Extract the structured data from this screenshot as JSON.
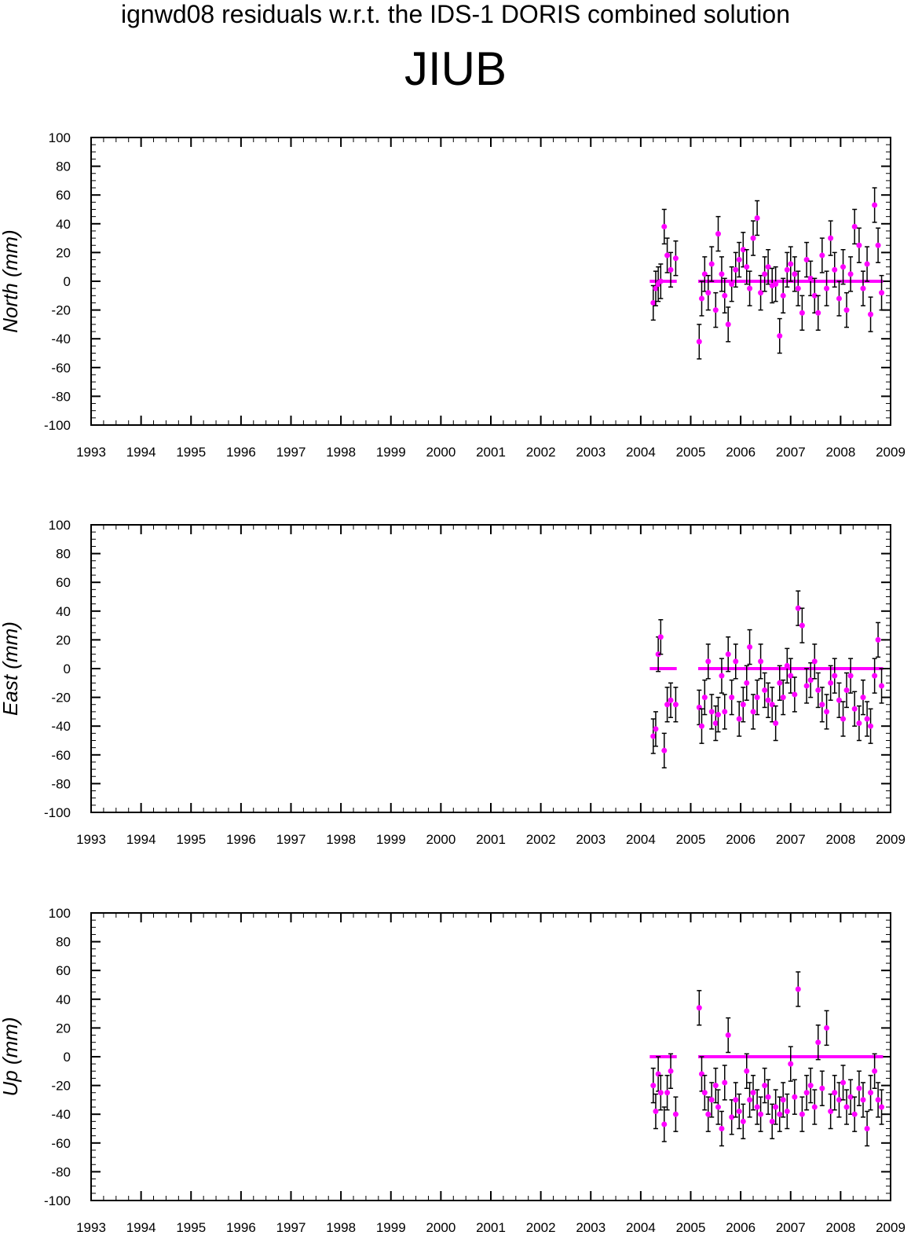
{
  "header": {
    "title": "ignwd08 residuals w.r.t. the IDS-1 DORIS combined solution",
    "station": "JIUB"
  },
  "colors": {
    "points": "#ff00ff",
    "errorbars": "#000000",
    "axes": "#000000",
    "background": "#ffffff"
  },
  "chart_data": [
    {
      "type": "scatter",
      "title": "",
      "xlabel": "",
      "ylabel": "North (mm)",
      "xlim": [
        1993,
        2009
      ],
      "ylim": [
        -100,
        100
      ],
      "x_ticks": [
        1993,
        1994,
        1995,
        1996,
        1997,
        1998,
        1999,
        2000,
        2001,
        2002,
        2003,
        2004,
        2005,
        2006,
        2007,
        2008,
        2009
      ],
      "y_ticks": [
        100,
        80,
        60,
        40,
        20,
        0,
        -20,
        -40,
        -60,
        -80,
        -100
      ],
      "grid": false,
      "error_bar_mm": 12,
      "series": [
        {
          "x": [
            2004.25,
            2004.3,
            2004.35,
            2004.4,
            2004.47,
            2004.53,
            2004.6,
            2004.7,
            2005.17,
            2005.22,
            2005.28,
            2005.35,
            2005.42,
            2005.5,
            2005.55,
            2005.62,
            2005.68,
            2005.75,
            2005.82,
            2005.9,
            2005.97,
            2006.05,
            2006.12,
            2006.18,
            2006.25,
            2006.33,
            2006.4,
            2006.48,
            2006.55,
            2006.63,
            2006.7,
            2006.78,
            2006.85,
            2006.93,
            2007.0,
            2007.08,
            2007.15,
            2007.23,
            2007.32,
            2007.4,
            2007.48,
            2007.55,
            2007.63,
            2007.72,
            2007.8,
            2007.88,
            2007.97,
            2008.05,
            2008.12,
            2008.2,
            2008.28,
            2008.37,
            2008.45,
            2008.53,
            2008.6,
            2008.68,
            2008.75,
            2008.82
          ],
          "y": [
            -15,
            -5,
            -2,
            0,
            38,
            18,
            8,
            16,
            -42,
            -12,
            5,
            -8,
            12,
            -20,
            33,
            5,
            -10,
            -30,
            -2,
            8,
            15,
            22,
            10,
            -5,
            30,
            44,
            -8,
            5,
            10,
            -3,
            -2,
            -38,
            -10,
            8,
            12,
            5,
            -5,
            -22,
            15,
            2,
            -10,
            -22,
            18,
            -5,
            30,
            8,
            -12,
            10,
            -20,
            5,
            38,
            25,
            -5,
            12,
            -23,
            53,
            25,
            -8
          ]
        }
      ],
      "mean_segments": [
        {
          "x": [
            2004.18,
            2004.72
          ],
          "y": 0
        },
        {
          "x": [
            2005.15,
            2008.85
          ],
          "y": 0
        }
      ]
    },
    {
      "type": "scatter",
      "title": "",
      "xlabel": "",
      "ylabel": "East (mm)",
      "xlim": [
        1993,
        2009
      ],
      "ylim": [
        -100,
        100
      ],
      "x_ticks": [
        1993,
        1994,
        1995,
        1996,
        1997,
        1998,
        1999,
        2000,
        2001,
        2002,
        2003,
        2004,
        2005,
        2006,
        2007,
        2008,
        2009
      ],
      "y_ticks": [
        100,
        80,
        60,
        40,
        20,
        0,
        -20,
        -40,
        -60,
        -80,
        -100
      ],
      "grid": false,
      "error_bar_mm": 12,
      "series": [
        {
          "x": [
            2004.25,
            2004.3,
            2004.35,
            2004.4,
            2004.47,
            2004.53,
            2004.6,
            2004.7,
            2005.17,
            2005.22,
            2005.28,
            2005.35,
            2005.42,
            2005.5,
            2005.55,
            2005.62,
            2005.68,
            2005.75,
            2005.82,
            2005.9,
            2005.97,
            2006.05,
            2006.12,
            2006.18,
            2006.25,
            2006.33,
            2006.4,
            2006.48,
            2006.55,
            2006.63,
            2006.7,
            2006.78,
            2006.85,
            2006.93,
            2007.0,
            2007.08,
            2007.15,
            2007.23,
            2007.32,
            2007.4,
            2007.48,
            2007.55,
            2007.63,
            2007.72,
            2007.8,
            2007.88,
            2007.97,
            2008.05,
            2008.12,
            2008.2,
            2008.28,
            2008.37,
            2008.45,
            2008.53,
            2008.6,
            2008.68,
            2008.75,
            2008.82
          ],
          "y": [
            -47,
            -42,
            10,
            22,
            -57,
            -25,
            -22,
            -25,
            -27,
            -40,
            -20,
            5,
            -30,
            -38,
            -32,
            -5,
            -30,
            10,
            -20,
            5,
            -35,
            -25,
            -10,
            15,
            -30,
            -20,
            5,
            -15,
            -22,
            -25,
            -38,
            -10,
            -20,
            2,
            -5,
            -18,
            42,
            30,
            -12,
            -8,
            5,
            -15,
            -25,
            -30,
            -10,
            -5,
            -22,
            -35,
            -15,
            -5,
            -28,
            -38,
            -20,
            -35,
            -40,
            -5,
            20,
            -12
          ]
        }
      ],
      "mean_segments": [
        {
          "x": [
            2004.18,
            2004.72
          ],
          "y": 0
        },
        {
          "x": [
            2005.15,
            2008.85
          ],
          "y": 0
        }
      ]
    },
    {
      "type": "scatter",
      "title": "",
      "xlabel": "",
      "ylabel": "Up (mm)",
      "xlim": [
        1993,
        2009
      ],
      "ylim": [
        -100,
        100
      ],
      "x_ticks": [
        1993,
        1994,
        1995,
        1996,
        1997,
        1998,
        1999,
        2000,
        2001,
        2002,
        2003,
        2004,
        2005,
        2006,
        2007,
        2008,
        2009
      ],
      "y_ticks": [
        100,
        80,
        60,
        40,
        20,
        0,
        -20,
        -40,
        -60,
        -80,
        -100
      ],
      "grid": false,
      "error_bar_mm": 12,
      "series": [
        {
          "x": [
            2004.25,
            2004.3,
            2004.35,
            2004.4,
            2004.47,
            2004.53,
            2004.6,
            2004.7,
            2005.17,
            2005.22,
            2005.28,
            2005.35,
            2005.42,
            2005.5,
            2005.55,
            2005.62,
            2005.68,
            2005.75,
            2005.82,
            2005.9,
            2005.97,
            2006.05,
            2006.12,
            2006.18,
            2006.25,
            2006.33,
            2006.4,
            2006.48,
            2006.55,
            2006.63,
            2006.7,
            2006.78,
            2006.85,
            2006.93,
            2007.0,
            2007.08,
            2007.15,
            2007.23,
            2007.32,
            2007.4,
            2007.48,
            2007.55,
            2007.63,
            2007.72,
            2007.8,
            2007.88,
            2007.97,
            2008.05,
            2008.12,
            2008.2,
            2008.28,
            2008.37,
            2008.45,
            2008.53,
            2008.6,
            2008.68,
            2008.75,
            2008.82
          ],
          "y": [
            -20,
            -38,
            -12,
            -25,
            -47,
            -25,
            -10,
            -40,
            34,
            -12,
            -25,
            -40,
            -30,
            -20,
            -35,
            -50,
            -18,
            15,
            -42,
            -30,
            -38,
            -45,
            -10,
            -30,
            -25,
            -35,
            -40,
            -20,
            -28,
            -45,
            -35,
            -40,
            -30,
            -38,
            -5,
            -28,
            47,
            -40,
            -25,
            -20,
            -35,
            10,
            -22,
            20,
            -38,
            -25,
            -30,
            -18,
            -35,
            -28,
            -40,
            -22,
            -30,
            -50,
            -25,
            -10,
            -30,
            -35
          ]
        }
      ],
      "mean_segments": [
        {
          "x": [
            2004.18,
            2004.72
          ],
          "y": 0
        },
        {
          "x": [
            2005.15,
            2008.85
          ],
          "y": 0
        }
      ]
    }
  ]
}
